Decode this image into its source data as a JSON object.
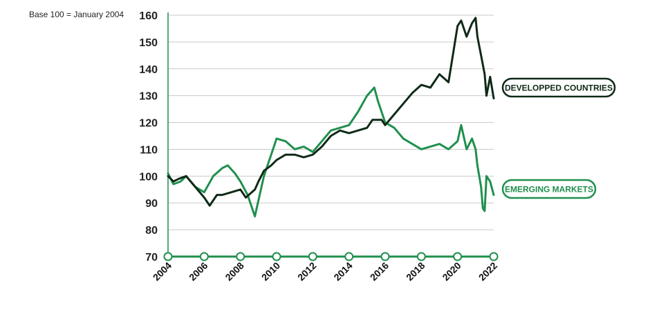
{
  "colors": {
    "developed": "#0f2a17",
    "emerging": "#1f8f4d",
    "axis": "#1f8f4d",
    "grid": "#c9c9c9"
  },
  "chart_data": {
    "type": "line",
    "note": "Base 100 = January 2004",
    "ylim": [
      70,
      160
    ],
    "yticks": [
      70,
      80,
      90,
      100,
      110,
      120,
      130,
      140,
      150,
      160
    ],
    "xlim": [
      2004,
      2022
    ],
    "xticks": [
      "2004",
      "2006",
      "2008",
      "2010",
      "2012",
      "2014",
      "2016",
      "2018",
      "2020",
      "2022"
    ],
    "grid": "horizontal",
    "legend": "right, end labels",
    "series": [
      {
        "name": "DEVELOPPED COUNTRIES",
        "x": [
          2004,
          2004.3,
          2004.6,
          2005,
          2005.5,
          2006,
          2006.3,
          2006.7,
          2007,
          2007.5,
          2008,
          2008.3,
          2008.8,
          2009,
          2009.3,
          2009.7,
          2010,
          2010.5,
          2011,
          2011.5,
          2012,
          2012.5,
          2013,
          2013.5,
          2014,
          2014.5,
          2015,
          2015.3,
          2015.8,
          2016,
          2016.5,
          2017,
          2017.5,
          2018,
          2018.5,
          2019,
          2019.5,
          2020,
          2020.2,
          2020.5,
          2020.8,
          2021,
          2021.1,
          2021.3,
          2021.5,
          2021.6,
          2021.8,
          2022
        ],
        "values": [
          100,
          98,
          99,
          100,
          96,
          92,
          89,
          93,
          93,
          94,
          95,
          92,
          95,
          98,
          102,
          104,
          106,
          108,
          108,
          107,
          108,
          111,
          115,
          117,
          116,
          117,
          118,
          121,
          121,
          119,
          123,
          127,
          131,
          134,
          133,
          138,
          135,
          156,
          158,
          152,
          157,
          159,
          152,
          145,
          138,
          130,
          137,
          129
        ]
      },
      {
        "name": "EMERGING MARKETS",
        "x": [
          2004,
          2004.3,
          2004.7,
          2005,
          2005.5,
          2006,
          2006.5,
          2007,
          2007.3,
          2007.7,
          2008,
          2008.4,
          2008.8,
          2009,
          2009.3,
          2009.7,
          2010,
          2010.5,
          2011,
          2011.5,
          2012,
          2012.5,
          2013,
          2013.5,
          2014,
          2014.5,
          2015,
          2015.4,
          2015.6,
          2016,
          2016.5,
          2017,
          2017.5,
          2018,
          2018.5,
          2019,
          2019.5,
          2020,
          2020.2,
          2020.5,
          2020.8,
          2021,
          2021.1,
          2021.3,
          2021.4,
          2021.5,
          2021.6,
          2021.8,
          2022
        ],
        "values": [
          101,
          97,
          98,
          100,
          96,
          94,
          100,
          103,
          104,
          101,
          98,
          93,
          85,
          91,
          100,
          108,
          114,
          113,
          110,
          111,
          109,
          113,
          117,
          118,
          119,
          124,
          130,
          133,
          128,
          120,
          118,
          114,
          112,
          110,
          111,
          112,
          110,
          113,
          119,
          110,
          114,
          110,
          104,
          96,
          88,
          87,
          100,
          98,
          93
        ]
      }
    ]
  }
}
